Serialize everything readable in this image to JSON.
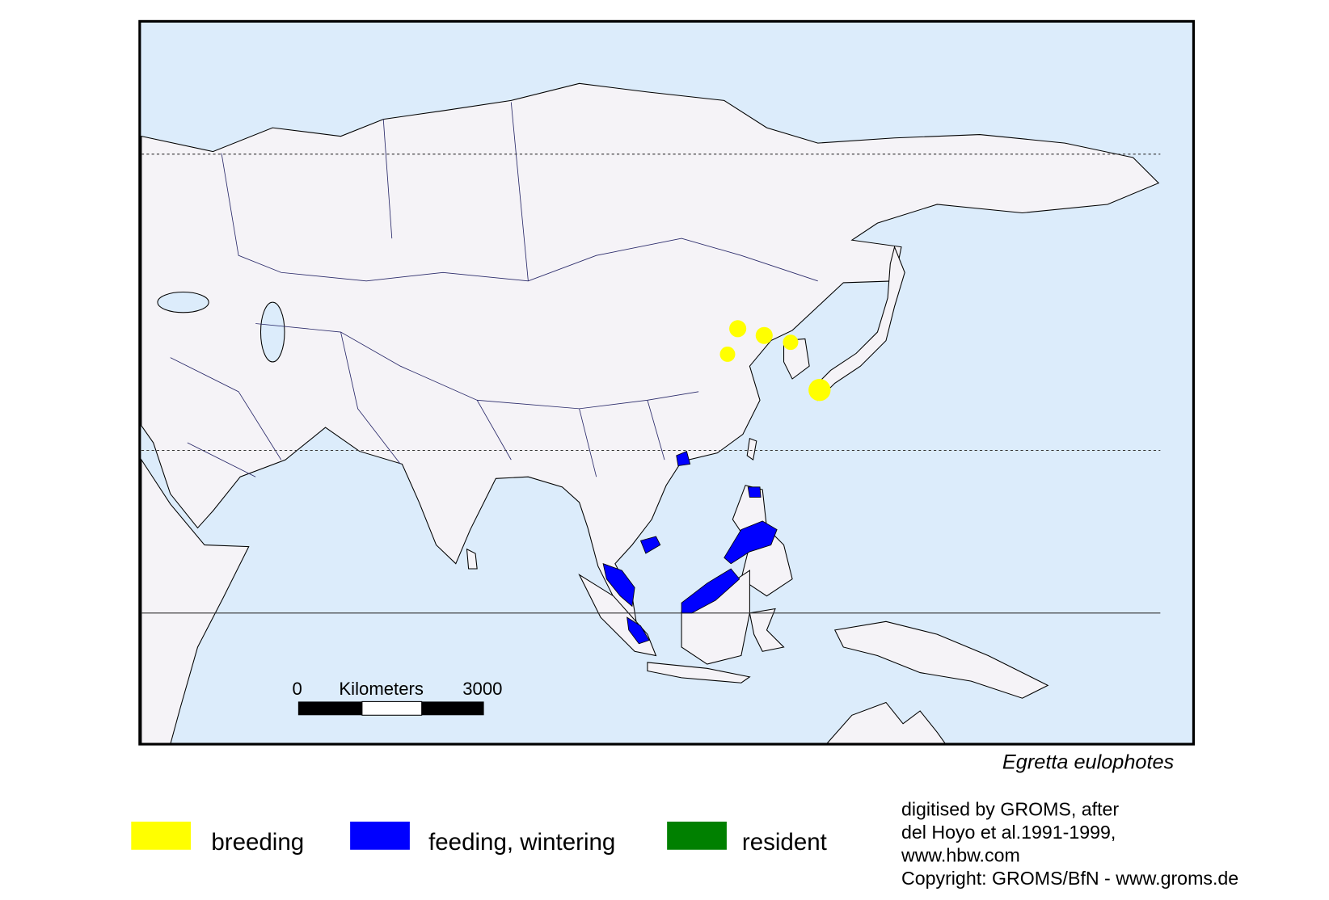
{
  "map": {
    "species": "Egretta eulophotes",
    "scale_bar": {
      "start": "0",
      "unit": "Kilometers",
      "end": "3000"
    },
    "legend": [
      {
        "label": "breeding",
        "color": "#ffff00"
      },
      {
        "label": "feeding, wintering",
        "color": "#0000ff"
      },
      {
        "label": "resident",
        "color": "#008000"
      }
    ],
    "credits": [
      "digitised by GROMS, after",
      "del Hoyo et al.1991-1999,",
      "www.hbw.com",
      "Copyright: GROMS/BfN - www.groms.de"
    ]
  }
}
